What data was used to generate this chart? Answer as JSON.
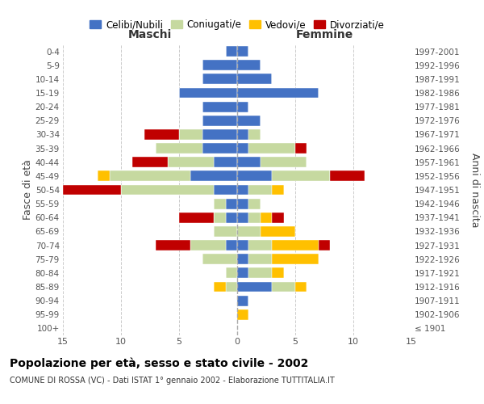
{
  "age_groups": [
    "100+",
    "95-99",
    "90-94",
    "85-89",
    "80-84",
    "75-79",
    "70-74",
    "65-69",
    "60-64",
    "55-59",
    "50-54",
    "45-49",
    "40-44",
    "35-39",
    "30-34",
    "25-29",
    "20-24",
    "15-19",
    "10-14",
    "5-9",
    "0-4"
  ],
  "birth_years": [
    "≤ 1901",
    "1902-1906",
    "1907-1911",
    "1912-1916",
    "1917-1921",
    "1922-1926",
    "1927-1931",
    "1932-1936",
    "1937-1941",
    "1942-1946",
    "1947-1951",
    "1952-1956",
    "1957-1961",
    "1962-1966",
    "1967-1971",
    "1972-1976",
    "1977-1981",
    "1982-1986",
    "1987-1991",
    "1992-1996",
    "1997-2001"
  ],
  "males": {
    "celibi": [
      0,
      0,
      0,
      0,
      0,
      0,
      1,
      0,
      1,
      1,
      2,
      4,
      2,
      3,
      3,
      3,
      3,
      5,
      3,
      3,
      1
    ],
    "coniugati": [
      0,
      0,
      0,
      1,
      1,
      3,
      3,
      2,
      1,
      1,
      8,
      7,
      4,
      4,
      2,
      0,
      0,
      0,
      0,
      0,
      0
    ],
    "vedovi": [
      0,
      0,
      0,
      1,
      0,
      0,
      0,
      0,
      0,
      0,
      0,
      1,
      0,
      0,
      0,
      0,
      0,
      0,
      0,
      0,
      0
    ],
    "divorziati": [
      0,
      0,
      0,
      0,
      0,
      0,
      3,
      0,
      3,
      0,
      5,
      0,
      3,
      0,
      3,
      0,
      0,
      0,
      0,
      0,
      0
    ]
  },
  "females": {
    "celibi": [
      0,
      0,
      1,
      3,
      1,
      1,
      1,
      0,
      1,
      1,
      1,
      3,
      2,
      1,
      1,
      2,
      1,
      7,
      3,
      2,
      1
    ],
    "coniugati": [
      0,
      0,
      0,
      2,
      2,
      2,
      2,
      2,
      1,
      1,
      2,
      5,
      4,
      4,
      1,
      0,
      0,
      0,
      0,
      0,
      0
    ],
    "vedovi": [
      0,
      1,
      0,
      1,
      1,
      4,
      4,
      3,
      1,
      0,
      1,
      0,
      0,
      0,
      0,
      0,
      0,
      0,
      0,
      0,
      0
    ],
    "divorziati": [
      0,
      0,
      0,
      0,
      0,
      0,
      1,
      0,
      1,
      0,
      0,
      3,
      0,
      1,
      0,
      0,
      0,
      0,
      0,
      0,
      0
    ]
  },
  "colors": {
    "celibi": "#4472c4",
    "coniugati": "#c6d9a0",
    "vedovi": "#ffc000",
    "divorziati": "#c00000"
  },
  "legend_labels": [
    "Celibi/Nubili",
    "Coniugati/e",
    "Vedovi/e",
    "Divorziati/e"
  ],
  "title": "Popolazione per età, sesso e stato civile - 2002",
  "subtitle": "COMUNE DI ROSSA (VC) - Dati ISTAT 1° gennaio 2002 - Elaborazione TUTTITALIA.IT",
  "xlabel_left": "Maschi",
  "xlabel_right": "Femmine",
  "ylabel_left": "Fasce di età",
  "ylabel_right": "Anni di nascita",
  "xlim": 15,
  "bg_color": "#ffffff"
}
